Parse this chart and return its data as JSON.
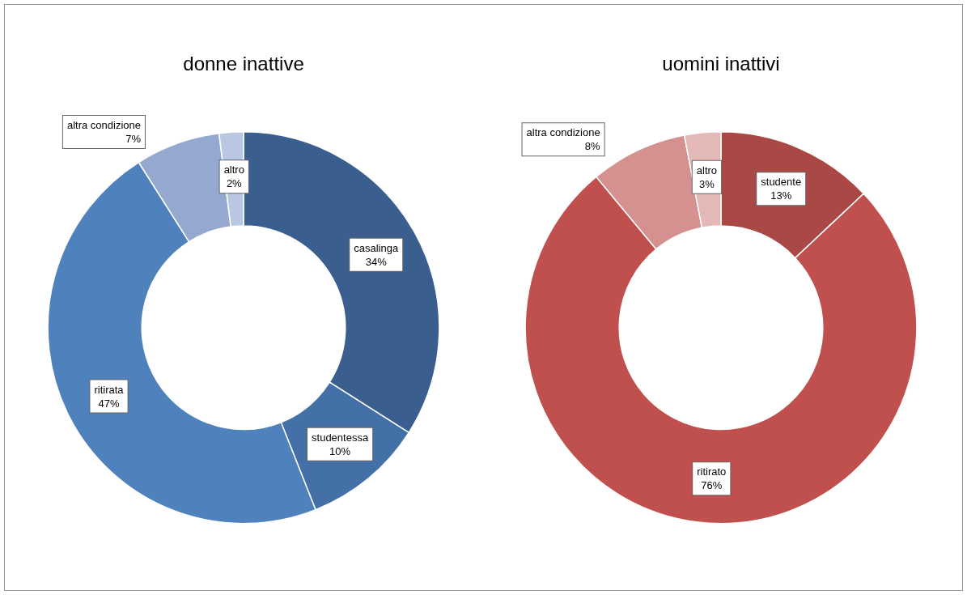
{
  "chart_data": [
    {
      "type": "donut",
      "title": "donne inattive",
      "categories": [
        "casalinga",
        "studentessa",
        "ritirata",
        "altra condizione",
        "altro"
      ],
      "values": [
        34,
        10,
        47,
        7,
        2
      ],
      "value_labels": [
        "34%",
        "10%",
        "47%",
        "7%",
        "2%"
      ],
      "colors": [
        "#3a5f8f",
        "#4470a8",
        "#4f81bd",
        "#95a9d0",
        "#b9c7e3"
      ],
      "legend": false
    },
    {
      "type": "donut",
      "title": "uomini inattivi",
      "categories": [
        "studente",
        "ritirato",
        "altra condizione",
        "altro"
      ],
      "values": [
        13,
        76,
        8,
        3
      ],
      "value_labels": [
        "13%",
        "76%",
        "8%",
        "3%"
      ],
      "colors": [
        "#a94845",
        "#c0504d",
        "#d49190",
        "#e3b8b7"
      ],
      "legend": false
    }
  ]
}
